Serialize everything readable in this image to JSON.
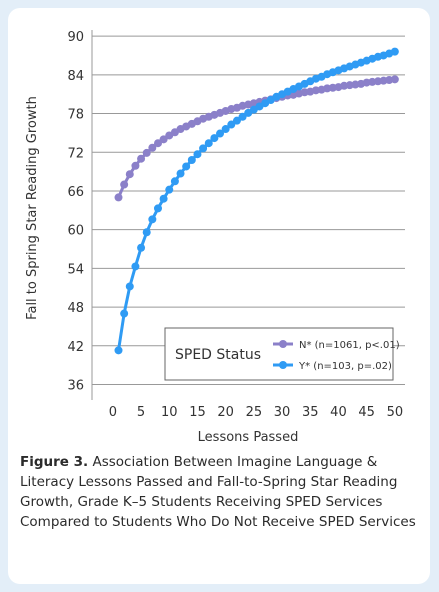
{
  "chart_data": {
    "type": "line",
    "y_label": "Fall to Spring Star Reading Growth",
    "x_label": "Lessons Passed",
    "x": [
      1,
      2,
      3,
      4,
      5,
      6,
      7,
      8,
      9,
      10,
      11,
      12,
      13,
      14,
      15,
      16,
      17,
      18,
      19,
      20,
      21,
      22,
      23,
      24,
      25,
      26,
      27,
      28,
      29,
      30,
      31,
      32,
      33,
      34,
      35,
      36,
      37,
      38,
      39,
      40,
      41,
      42,
      43,
      44,
      45,
      46,
      47,
      48,
      49,
      50
    ],
    "series": [
      {
        "name": "N* (n=1061, p<.01)",
        "color": "#8b80c9",
        "values": [
          65.0,
          67.0,
          68.6,
          69.9,
          71.0,
          71.9,
          72.7,
          73.4,
          74.0,
          74.6,
          75.1,
          75.6,
          76.0,
          76.4,
          76.8,
          77.2,
          77.5,
          77.8,
          78.1,
          78.4,
          78.7,
          78.9,
          79.2,
          79.4,
          79.6,
          79.8,
          80.0,
          80.2,
          80.4,
          80.6,
          80.8,
          80.9,
          81.1,
          81.3,
          81.4,
          81.6,
          81.7,
          81.9,
          82.0,
          82.1,
          82.3,
          82.4,
          82.5,
          82.6,
          82.8,
          82.9,
          83.0,
          83.1,
          83.2,
          83.3
        ]
      },
      {
        "name": "Y* (n=103, p=.02)",
        "color": "#2f9bf4",
        "values": [
          41.3,
          47.0,
          51.2,
          54.3,
          57.2,
          59.6,
          61.6,
          63.3,
          64.8,
          66.2,
          67.5,
          68.7,
          69.8,
          70.8,
          71.7,
          72.6,
          73.4,
          74.2,
          74.9,
          75.6,
          76.3,
          76.9,
          77.5,
          78.1,
          78.6,
          79.1,
          79.6,
          80.1,
          80.6,
          81.0,
          81.4,
          81.8,
          82.2,
          82.6,
          83.0,
          83.4,
          83.7,
          84.1,
          84.4,
          84.7,
          85.0,
          85.3,
          85.6,
          85.9,
          86.2,
          86.5,
          86.8,
          87.0,
          87.3,
          87.6
        ]
      }
    ],
    "legend_title": "SPED Status",
    "legend": "lower right",
    "xlim": [
      -3.7,
      51.8
    ],
    "xticks": [
      0,
      5,
      10,
      15,
      20,
      25,
      30,
      35,
      40,
      45,
      50
    ],
    "ylim": [
      33.6,
      92.5
    ],
    "yticks": [
      36,
      42,
      48,
      54,
      60,
      66,
      72,
      78,
      84,
      90
    ],
    "grid": true
  },
  "caption": {
    "label": "Figure 3.",
    "text": "Association Between Imagine Language & Literacy Lessons Passed and Fall-to-Spring Star Reading Growth, Grade K–5 Students Receiving SPED Services Compared to Students Who Do Not Receive SPED Services"
  }
}
